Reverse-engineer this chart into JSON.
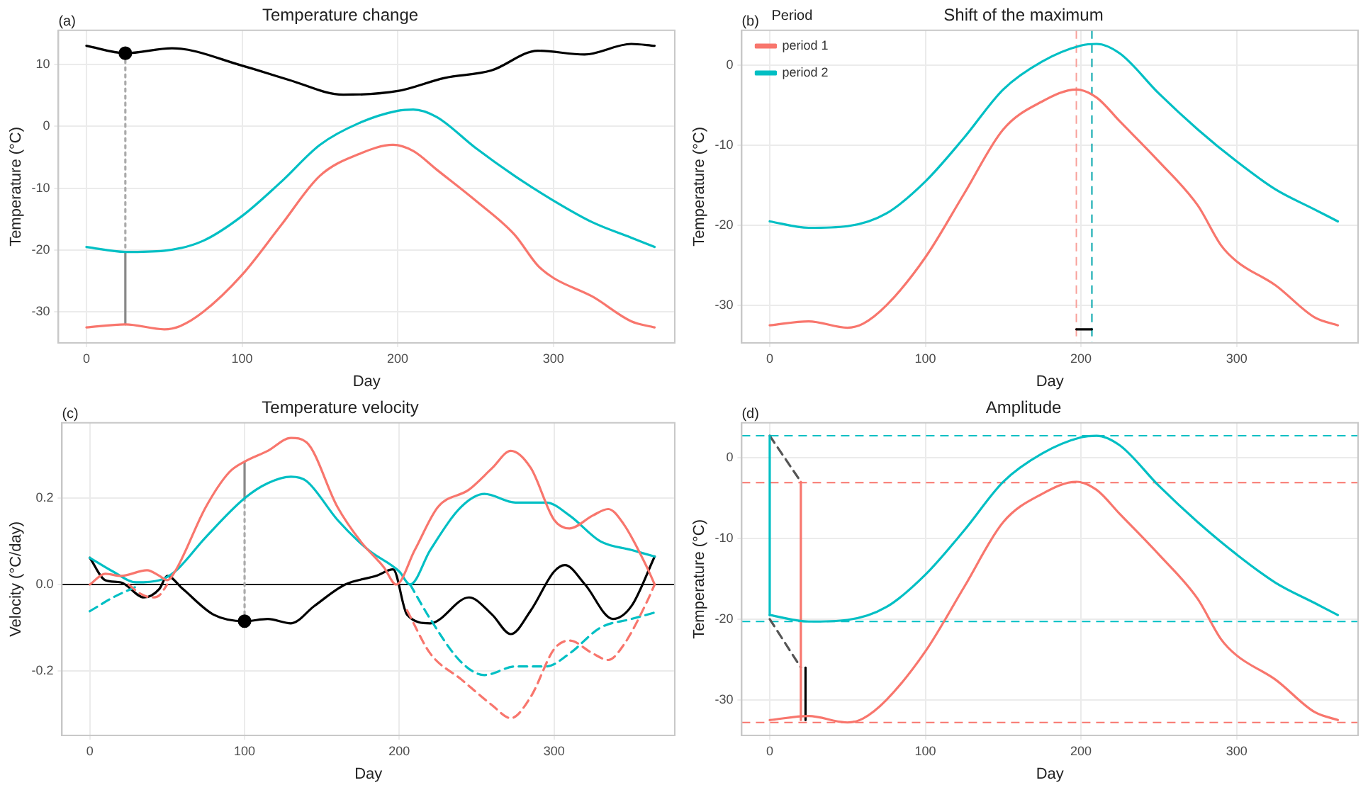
{
  "chart_data": [
    {
      "type": "line",
      "title": "Temperature change",
      "xlabel": "Day",
      "ylabel": "Temperature (°C)",
      "annotations": [
        "(a)"
      ],
      "xlim": [
        -18,
        378
      ],
      "xticks": [
        0,
        100,
        200,
        300
      ],
      "ylim": [
        -35,
        15.5
      ],
      "yticks": [
        -30,
        -20,
        -10,
        0,
        10
      ],
      "grid": true,
      "legend": false,
      "marker": "none",
      "line_style": "solid",
      "series": [
        {
          "color": "#f8766d",
          "x": [
            0,
            25,
            50,
            60,
            75,
            100,
            125,
            150,
            175,
            197,
            210,
            225,
            250,
            275,
            290,
            300,
            325,
            350,
            365
          ],
          "values": [
            -32.5,
            -32,
            -32.8,
            -32.3,
            -30,
            -24,
            -16,
            -8,
            -4.5,
            -3,
            -4,
            -7,
            -12,
            -17.5,
            -22.5,
            -24.5,
            -27.5,
            -31.5,
            -32.5
          ]
        },
        {
          "color": "#00bfc4",
          "x": [
            0,
            25,
            50,
            75,
            100,
            125,
            150,
            175,
            200,
            210,
            225,
            250,
            275,
            300,
            325,
            350,
            365
          ],
          "values": [
            -19.5,
            -20.3,
            -20.1,
            -18.5,
            -14.5,
            -9,
            -3,
            0.5,
            2.5,
            2.7,
            1.5,
            -3.5,
            -8,
            -12,
            -15.5,
            -18,
            -19.5
          ]
        },
        {
          "color": "#000000",
          "x": [
            0,
            25,
            55,
            100,
            130,
            165,
            200,
            230,
            260,
            290,
            320,
            350,
            365
          ],
          "values": [
            13,
            11.8,
            12.6,
            9.8,
            7.5,
            5.1,
            5.7,
            7.8,
            9,
            12.2,
            11.6,
            13.3,
            13
          ]
        },
        {
          "type": "scatter",
          "marker": "circle",
          "color": "#000000",
          "x": [
            25
          ],
          "values": [
            11.8
          ]
        },
        {
          "color": "#aaaaaa",
          "line_style": "dotted",
          "x": [
            25,
            25
          ],
          "values": [
            11.8,
            -20.3
          ]
        },
        {
          "color": "#888888",
          "x": [
            25,
            25
          ],
          "values": [
            -20.3,
            -32
          ]
        }
      ]
    },
    {
      "type": "line",
      "title": "Shift of the maximum",
      "xlabel": "Day",
      "ylabel": "Temperature (°C)",
      "annotations": [
        "(b)"
      ],
      "legend_title": "Period",
      "xlim": [
        -18,
        378
      ],
      "xticks": [
        0,
        100,
        200,
        300
      ],
      "ylim": [
        -34.7,
        4.4
      ],
      "yticks": [
        -30,
        -20,
        -10,
        0
      ],
      "grid": true,
      "legend": "top left",
      "marker": "none",
      "line_style": "solid",
      "series": [
        {
          "name": "period 1",
          "color": "#f8766d",
          "x": [
            0,
            25,
            50,
            60,
            75,
            100,
            125,
            150,
            175,
            197,
            210,
            225,
            250,
            275,
            290,
            300,
            325,
            350,
            365
          ],
          "values": [
            -32.5,
            -32,
            -32.8,
            -32.3,
            -30,
            -24,
            -16,
            -8,
            -4.5,
            -3,
            -4,
            -7,
            -12,
            -17.5,
            -22.5,
            -24.5,
            -27.5,
            -31.5,
            -32.5
          ]
        },
        {
          "name": "period 2",
          "color": "#00bfc4",
          "x": [
            0,
            25,
            50,
            75,
            100,
            125,
            150,
            175,
            200,
            210,
            225,
            250,
            275,
            300,
            325,
            350,
            365
          ],
          "values": [
            -19.5,
            -20.3,
            -20.1,
            -18.5,
            -14.5,
            -9,
            -3,
            0.5,
            2.5,
            2.7,
            1.5,
            -3.5,
            -8,
            -12,
            -15.5,
            -18,
            -19.5
          ]
        },
        {
          "color": "#000000",
          "x": [
            197,
            207
          ],
          "values": [
            -33,
            -33
          ]
        }
      ],
      "ref_lines": [
        {
          "axis": "x",
          "value": 197,
          "color": "#f8a09a",
          "line_style": "dashed"
        },
        {
          "axis": "x",
          "value": 207,
          "color": "#00a5ab",
          "line_style": "dashed"
        }
      ]
    },
    {
      "type": "line",
      "title": "Temperature velocity",
      "xlabel": "Day",
      "ylabel": "Velocity (°C/day)",
      "annotations": [
        "(c)"
      ],
      "xlim": [
        -18,
        378
      ],
      "xticks": [
        0,
        100,
        200,
        300
      ],
      "ylim": [
        -0.35,
        0.375
      ],
      "yticks": [
        -0.2,
        {
          "value": 0,
          "label": "0.0"
        },
        0.2
      ],
      "grid": true,
      "legend": false,
      "marker": "none",
      "line_style": "solid",
      "series": [
        {
          "color": "#f8766d",
          "x": [
            0,
            10,
            20,
            37,
            45,
            50,
            55,
            75,
            90,
            100,
            115,
            130,
            140,
            160,
            175,
            190,
            198,
            210,
            225,
            245,
            260,
            272,
            285,
            300,
            310,
            325,
            335,
            345,
            360,
            365
          ],
          "values": [
            0,
            0.025,
            0.02,
            0.033,
            0.02,
            0.01,
            0.03,
            0.18,
            0.26,
            0.285,
            0.31,
            0.34,
            0.33,
            0.18,
            0.1,
            0.04,
            0,
            0.08,
            0.18,
            0.22,
            0.27,
            0.31,
            0.27,
            0.15,
            0.13,
            0.16,
            0.175,
            0.14,
            0.04,
            0
          ]
        },
        {
          "color": "#f8766d",
          "line_style": "dashed",
          "x": [
            25,
            32,
            40,
            45,
            50,
            198,
            205,
            220,
            240,
            260,
            272,
            285,
            300,
            310,
            325,
            335,
            345,
            360,
            365
          ],
          "values": [
            0,
            -0.02,
            -0.03,
            -0.025,
            0,
            null,
            -0.06,
            -0.16,
            -0.22,
            -0.28,
            -0.31,
            -0.26,
            -0.15,
            -0.13,
            -0.16,
            -0.175,
            -0.14,
            -0.04,
            0
          ]
        },
        {
          "color": "#00bfc4",
          "x": [
            0,
            15,
            30,
            45,
            55,
            75,
            100,
            115,
            130,
            140,
            160,
            180,
            200,
            207,
            220,
            240,
            255,
            275,
            295,
            310,
            330,
            350,
            365
          ],
          "values": [
            0.062,
            0.03,
            0.005,
            0.01,
            0.03,
            0.11,
            0.2,
            0.235,
            0.25,
            0.24,
            0.15,
            0.08,
            0.03,
            0,
            0.08,
            0.18,
            0.21,
            0.19,
            0.19,
            0.16,
            0.1,
            0.08,
            0.065
          ]
        },
        {
          "color": "#00bfc4",
          "line_style": "dashed",
          "x": [
            0,
            15,
            30,
            120,
            207,
            220,
            240,
            255,
            275,
            295,
            310,
            330,
            350,
            365
          ],
          "values": [
            -0.062,
            -0.03,
            -0.005,
            null,
            0,
            -0.08,
            -0.18,
            -0.21,
            -0.19,
            -0.19,
            -0.16,
            -0.1,
            -0.08,
            -0.065
          ]
        },
        {
          "color": "#000000",
          "x": [
            0,
            10,
            20,
            35,
            45,
            50,
            60,
            80,
            100,
            115,
            130,
            145,
            165,
            185,
            196,
            205,
            220,
            245,
            260,
            272,
            285,
            300,
            307,
            320,
            338,
            350,
            365
          ],
          "values": [
            0.062,
            0.01,
            0.005,
            -0.03,
            -0.01,
            0.02,
            -0.01,
            -0.07,
            -0.085,
            -0.08,
            -0.09,
            -0.05,
            0,
            0.02,
            0.035,
            -0.07,
            -0.09,
            -0.03,
            -0.07,
            -0.115,
            -0.06,
            0.03,
            0.045,
            0,
            -0.08,
            -0.05,
            0.065
          ]
        },
        {
          "type": "scatter",
          "marker": "circle",
          "color": "#000000",
          "x": [
            100
          ],
          "values": [
            -0.085
          ]
        },
        {
          "color": "#aaaaaa",
          "line_style": "dotted",
          "x": [
            100,
            100
          ],
          "values": [
            -0.085,
            0.2
          ]
        },
        {
          "color": "#888888",
          "x": [
            100,
            100
          ],
          "values": [
            0.2,
            0.285
          ]
        }
      ],
      "ref_lines": [
        {
          "axis": "y",
          "value": 0,
          "color": "#000000",
          "line_style": "solid"
        }
      ]
    },
    {
      "type": "line",
      "title": "Amplitude",
      "xlabel": "Day",
      "ylabel": "Temperature (°C)",
      "annotations": [
        "(d)"
      ],
      "xlim": [
        -18,
        378
      ],
      "xticks": [
        0,
        100,
        200,
        300
      ],
      "ylim": [
        -34.4,
        4.3
      ],
      "yticks": [
        -30,
        -20,
        -10,
        0
      ],
      "grid": true,
      "legend": false,
      "marker": "none",
      "line_style": "solid",
      "series": [
        {
          "color": "#f8766d",
          "x": [
            0,
            25,
            50,
            60,
            75,
            100,
            125,
            150,
            175,
            197,
            210,
            225,
            250,
            275,
            290,
            300,
            325,
            350,
            365
          ],
          "values": [
            -32.5,
            -32,
            -32.8,
            -32.3,
            -30,
            -24,
            -16,
            -8,
            -4.5,
            -3,
            -4,
            -7,
            -12,
            -17.5,
            -22.5,
            -24.5,
            -27.5,
            -31.5,
            -32.5
          ]
        },
        {
          "color": "#00bfc4",
          "x": [
            0,
            25,
            50,
            75,
            100,
            125,
            150,
            175,
            200,
            210,
            225,
            250,
            275,
            300,
            325,
            350,
            365
          ],
          "values": [
            -19.5,
            -20.3,
            -20.1,
            -18.5,
            -14.5,
            -9,
            -3,
            0.5,
            2.5,
            2.7,
            1.5,
            -3.5,
            -8,
            -12,
            -15.5,
            -18,
            -19.5
          ]
        },
        {
          "color": "#00bfc4",
          "x": [
            0,
            0
          ],
          "values": [
            -19.5,
            2.7
          ]
        },
        {
          "color": "#f8766d",
          "x": [
            20,
            20
          ],
          "values": [
            -32.5,
            -3
          ]
        },
        {
          "color": "#555555",
          "line_style": "dashed",
          "x": [
            0,
            20
          ],
          "values": [
            2.7,
            -3
          ]
        },
        {
          "color": "#555555",
          "line_style": "dashed",
          "x": [
            0,
            20
          ],
          "values": [
            -20,
            -26
          ]
        },
        {
          "color": "#000000",
          "x": [
            23,
            23
          ],
          "values": [
            -32.5,
            -26
          ]
        }
      ],
      "ref_lines": [
        {
          "axis": "y",
          "value": 2.7,
          "color": "#00bfc4",
          "line_style": "dashed"
        },
        {
          "axis": "y",
          "value": -3.1,
          "color": "#f8766d",
          "line_style": "dashed"
        },
        {
          "axis": "y",
          "value": -20.3,
          "color": "#00bfc4",
          "line_style": "dashed"
        },
        {
          "axis": "y",
          "value": -32.8,
          "color": "#f8766d",
          "line_style": "dashed"
        }
      ]
    }
  ]
}
